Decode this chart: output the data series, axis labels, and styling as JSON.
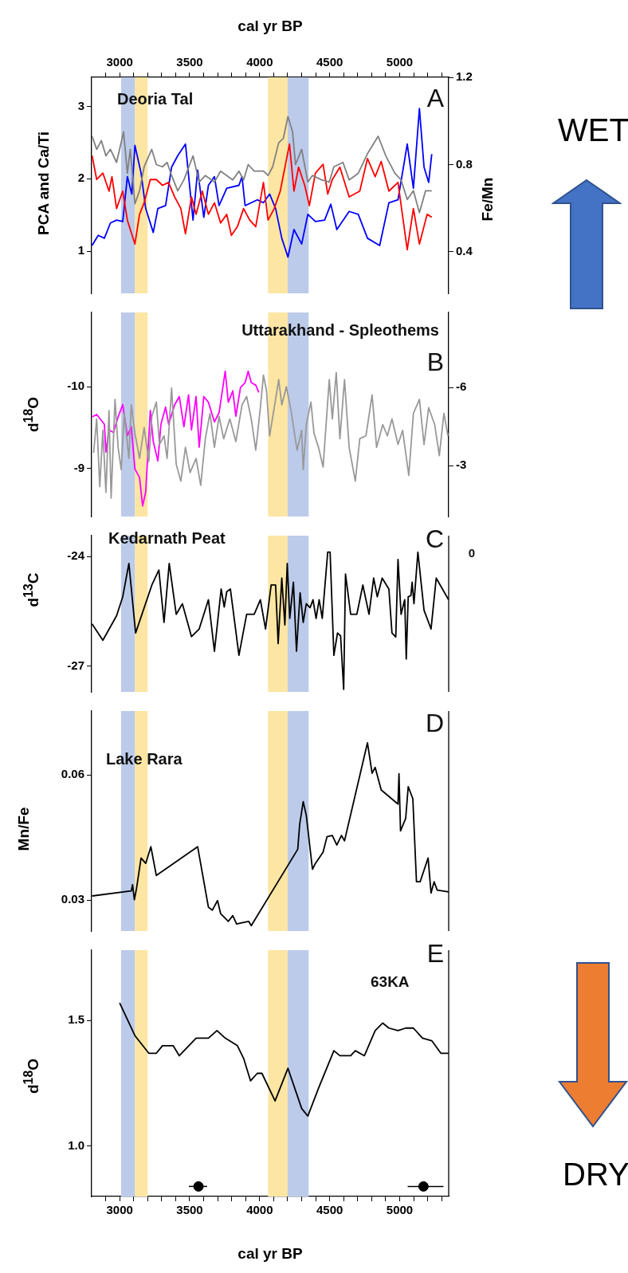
{
  "chart_data": [
    {
      "type": "line",
      "xlabel": "cal yr BP",
      "ylabel": "PCA and Ca/Ti",
      "y2label": "Fe/Mn",
      "annotations": [
        "Deoria Tal",
        "A"
      ],
      "xlim": [
        2800,
        5350
      ],
      "xticks": [
        {
          "value": 2900,
          "label": null
        },
        3000,
        {
          "value": 3100,
          "label": null
        },
        {
          "value": 3200,
          "label": null
        },
        {
          "value": 3300,
          "label": null
        },
        {
          "value": 3400,
          "label": null
        },
        3500,
        {
          "value": 3600,
          "label": null
        },
        {
          "value": 3700,
          "label": null
        },
        {
          "value": 3800,
          "label": null
        },
        {
          "value": 3900,
          "label": null
        },
        4000,
        {
          "value": 4100,
          "label": null
        },
        {
          "value": 4200,
          "label": null
        },
        {
          "value": 4300,
          "label": null
        },
        {
          "value": 4400,
          "label": null
        },
        4500,
        {
          "value": 4600,
          "label": null
        },
        {
          "value": 4700,
          "label": null
        },
        {
          "value": 4800,
          "label": null
        },
        {
          "value": 4900,
          "label": null
        },
        5000,
        {
          "value": 5100,
          "label": null
        },
        {
          "value": 5200,
          "label": null
        },
        {
          "value": 5300,
          "label": null
        }
      ],
      "ylim": [
        0.42,
        3.4
      ],
      "yticks": [
        1,
        2,
        3
      ],
      "y2lim": [
        0.21,
        1.2
      ],
      "y2ticks": [
        0.4,
        0.8,
        1.2
      ],
      "bands": [
        {
          "axis": "x",
          "from": 3010,
          "to": 3110,
          "color": "#bccbea"
        },
        {
          "axis": "x",
          "from": 3110,
          "to": 3200,
          "color": "#fde6a3"
        },
        {
          "axis": "x",
          "from": 4060,
          "to": 4200,
          "color": "#fde6a3"
        },
        {
          "axis": "x",
          "from": 4200,
          "to": 4350,
          "color": "#bccbea"
        }
      ],
      "series": [
        {
          "color": "#808080",
          "axis": "y2",
          "x": [
            2803,
            2836,
            2869,
            2902,
            2934,
            2978,
            3028,
            3055,
            3076,
            3109,
            3142,
            3175,
            3229,
            3262,
            3306,
            3339,
            3371,
            3415,
            3459,
            3524,
            3568,
            3612,
            3677,
            3721,
            3765,
            3808,
            3852,
            3885,
            3918,
            3961,
            4027,
            4060,
            4093,
            4136,
            4169,
            4202,
            4235,
            4256,
            4300,
            4344,
            4377,
            4442,
            4497,
            4530,
            4595,
            4639,
            4704,
            4770,
            4846,
            4901,
            4966,
            5010,
            5054,
            5098,
            5141,
            5185,
            5229
          ],
          "values": [
            0.93,
            0.87,
            0.91,
            0.84,
            0.87,
            0.81,
            0.95,
            0.76,
            0.87,
            0.62,
            0.68,
            0.79,
            0.87,
            0.8,
            0.79,
            0.81,
            0.75,
            0.68,
            0.73,
            0.84,
            0.72,
            0.75,
            0.72,
            0.77,
            0.75,
            0.73,
            0.77,
            0.73,
            0.8,
            0.77,
            0.77,
            0.75,
            0.79,
            0.9,
            0.92,
            1.02,
            0.95,
            0.8,
            0.87,
            0.72,
            0.75,
            0.73,
            0.72,
            0.79,
            0.81,
            0.73,
            0.76,
            0.85,
            0.93,
            0.84,
            0.76,
            0.73,
            0.64,
            0.68,
            0.58,
            0.68,
            0.68
          ]
        },
        {
          "color": "#ff0000",
          "x": [
            2803,
            2836,
            2880,
            2924,
            2945,
            2978,
            3022,
            3055,
            3109,
            3142,
            3175,
            3219,
            3262,
            3306,
            3349,
            3393,
            3437,
            3470,
            3513,
            3546,
            3590,
            3634,
            3677,
            3721,
            3765,
            3798,
            3841,
            3885,
            3929,
            3972,
            4027,
            4060,
            4104,
            4147,
            4213,
            4245,
            4278,
            4322,
            4355,
            4398,
            4453,
            4486,
            4519,
            4573,
            4639,
            4715,
            4770,
            4825,
            4868,
            4923,
            4988,
            5054,
            5098,
            5141,
            5196,
            5229
          ],
          "values": [
            2.32,
            1.99,
            2.08,
            1.83,
            2.03,
            1.59,
            1.83,
            1.43,
            1.1,
            1.51,
            1.67,
            1.99,
            1.99,
            1.91,
            1.95,
            1.75,
            1.59,
            1.24,
            1.75,
            1.51,
            1.83,
            1.51,
            1.67,
            1.39,
            1.51,
            1.22,
            1.34,
            1.59,
            1.43,
            1.34,
            1.95,
            1.43,
            1.59,
            1.83,
            2.48,
            1.83,
            2.16,
            1.91,
            1.63,
            2.08,
            2.2,
            1.79,
            1.99,
            2.16,
            1.75,
            1.83,
            2.28,
            2.03,
            2.24,
            1.83,
            1.95,
            1.02,
            1.59,
            1.1,
            1.51,
            1.47
          ]
        },
        {
          "color": "#0000ff",
          "x": [
            2803,
            2847,
            2891,
            2934,
            2978,
            3022,
            3055,
            3087,
            3109,
            3153,
            3186,
            3240,
            3273,
            3328,
            3371,
            3415,
            3470,
            3524,
            3557,
            3601,
            3634,
            3677,
            3710,
            3765,
            3852,
            3874,
            3896,
            3983,
            4027,
            4071,
            4114,
            4158,
            4202,
            4245,
            4300,
            4344,
            4398,
            4464,
            4508,
            4551,
            4639,
            4704,
            4770,
            4857,
            4923,
            4988,
            5054,
            5098,
            5141,
            5174,
            5207,
            5229
          ],
          "values": [
            1.08,
            1.22,
            1.18,
            1.39,
            1.43,
            1.41,
            2.03,
            1.79,
            2.46,
            2.08,
            1.59,
            1.26,
            1.59,
            1.63,
            2.16,
            2.32,
            2.48,
            1.43,
            2.12,
            1.47,
            1.91,
            2.03,
            1.63,
            1.87,
            1.91,
            2.03,
            1.63,
            1.71,
            1.67,
            1.79,
            1.59,
            1.18,
            0.92,
            1.3,
            1.1,
            1.51,
            1.41,
            1.43,
            1.65,
            1.3,
            1.55,
            1.51,
            1.18,
            1.08,
            1.67,
            1.71,
            2.48,
            1.87,
            2.97,
            2.16,
            1.95,
            2.34
          ]
        }
      ]
    },
    {
      "type": "line",
      "ylabel": "d$^{18}$O",
      "annotations": [
        "Uttarakhand - Spleothems",
        "B"
      ],
      "tick_labels": "y",
      "xlim": [
        2800,
        5350
      ],
      "ylim": [
        -8.41,
        -10.91
      ],
      "yticks": [
        -10,
        -9
      ],
      "y2lim": [
        -1.04,
        -8.88
      ],
      "y2ticks": [
        -6,
        -3
      ],
      "bands": [
        {
          "axis": "x",
          "from": 3010,
          "to": 3110,
          "color": "#bccbea"
        },
        {
          "axis": "x",
          "from": 3110,
          "to": 3200,
          "color": "#fde6a3"
        },
        {
          "axis": "x",
          "from": 4060,
          "to": 4200,
          "color": "#fde6a3"
        },
        {
          "axis": "x",
          "from": 4200,
          "to": 4350,
          "color": "#bccbea"
        }
      ],
      "series": [
        {
          "color": "#999999",
          "axis": "y2",
          "x": [
            2814,
            2836,
            2858,
            2880,
            2902,
            2924,
            2939,
            2967,
            2989,
            3011,
            3033,
            3066,
            3083,
            3109,
            3142,
            3175,
            3208,
            3230,
            3262,
            3284,
            3317,
            3339,
            3371,
            3404,
            3437,
            3470,
            3503,
            3546,
            3579,
            3612,
            3645,
            3677,
            3710,
            3743,
            3787,
            3830,
            3874,
            3907,
            3940,
            3972,
            4005,
            4027,
            4049,
            4071,
            4104,
            4136,
            4158,
            4191,
            4224,
            4267,
            4300,
            4311,
            4333,
            4366,
            4388,
            4420,
            4453,
            4497,
            4519,
            4547,
            4573,
            4606,
            4639,
            4683,
            4715,
            4759,
            4803,
            4835,
            4879,
            4912,
            4945,
            4988,
            5021,
            5065,
            5098,
            5141,
            5174,
            5207,
            5250,
            5283,
            5316,
            5345
          ],
          "values": [
            -3.49,
            -4.79,
            -2.19,
            -4.35,
            -1.97,
            -5.11,
            -1.75,
            -5.54,
            -3.7,
            -2.84,
            -5,
            -3.27,
            -5.33,
            -4.24,
            -3.27,
            -4.46,
            -3.16,
            -4.89,
            -5.44,
            -3.81,
            -4.14,
            -3.27,
            -5.98,
            -3.05,
            -2.4,
            -3.7,
            -2.73,
            -3.27,
            -2.24,
            -4.03,
            -5,
            -3.7,
            -4.89,
            -4.03,
            -4.79,
            -3.92,
            -5.33,
            -5.65,
            -4.79,
            -3.59,
            -5.22,
            -6.47,
            -5.87,
            -4.14,
            -5.22,
            -6.3,
            -5.33,
            -6.03,
            -5.11,
            -3.59,
            -4.35,
            -2.84,
            -4.57,
            -5.44,
            -4.24,
            -3.7,
            -2.94,
            -6.3,
            -4.79,
            -6.57,
            -4.03,
            -6.3,
            -3.7,
            -2.4,
            -4.03,
            -4.14,
            -5.71,
            -3.7,
            -4.57,
            -4.14,
            -4.79,
            -3.81,
            -4.35,
            -2.62,
            -5,
            -5.54,
            -3.81,
            -5.22,
            -4.57,
            -3.38,
            -5,
            -4.14
          ]
        },
        {
          "color": "#ff00ff",
          "x": [
            2803,
            2836,
            2891,
            2902,
            2924,
            2956,
            2989,
            3022,
            3055,
            3083,
            3109,
            3142,
            3164,
            3186,
            3219,
            3240,
            3273,
            3295,
            3328,
            3350,
            3393,
            3426,
            3459,
            3492,
            3513,
            3546,
            3568,
            3601,
            3634,
            3677,
            3710,
            3754,
            3776,
            3808,
            3830,
            3863,
            3896,
            3918,
            3940,
            3972,
            3994
          ],
          "values": [
            -9.63,
            -9.66,
            -9.54,
            -9.2,
            -9.47,
            -9.44,
            -9.63,
            -9.78,
            -9.4,
            -9.51,
            -8.99,
            -8.89,
            -8.54,
            -8.71,
            -9.71,
            -9.33,
            -9.09,
            -9.54,
            -9.75,
            -9.54,
            -9.78,
            -9.88,
            -9.51,
            -9.9,
            -9.47,
            -9.88,
            -9.26,
            -9.88,
            -9.81,
            -9.57,
            -9.68,
            -10.19,
            -9.81,
            -9.95,
            -9.64,
            -9.99,
            -10.05,
            -10.19,
            -10.05,
            -10.02,
            -9.93
          ]
        }
      ]
    },
    {
      "type": "line",
      "ylabel": "d$^{13}$C",
      "annotations": [
        "Kedarnath Peat",
        "C",
        "0"
      ],
      "tick_labels": "y",
      "xlim": [
        2800,
        5350
      ],
      "ylim": [
        -27.7,
        -23.43
      ],
      "yticks": [
        -27,
        -24
      ],
      "bands": [
        {
          "axis": "x",
          "from": 3010,
          "to": 3110,
          "color": "#bccbea"
        },
        {
          "axis": "x",
          "from": 3110,
          "to": 3200,
          "color": "#fde6a3"
        },
        {
          "axis": "x",
          "from": 4060,
          "to": 4200,
          "color": "#fde6a3"
        },
        {
          "axis": "x",
          "from": 4200,
          "to": 4350,
          "color": "#bccbea"
        }
      ],
      "series": [
        {
          "color": "#000000",
          "x": [
            2803,
            2880,
            2978,
            3022,
            3066,
            3114,
            3230,
            3280,
            3317,
            3354,
            3404,
            3448,
            3513,
            3568,
            3634,
            3677,
            3725,
            3747,
            3765,
            3791,
            3852,
            3907,
            3961,
            4005,
            4042,
            4082,
            4114,
            4132,
            4158,
            4180,
            4197,
            4215,
            4241,
            4263,
            4289,
            4311,
            4333,
            4360,
            4381,
            4403,
            4425,
            4447,
            4486,
            4503,
            4530,
            4556,
            4578,
            4600,
            4613,
            4650,
            4694,
            4737,
            4781,
            4814,
            4840,
            4875,
            4923,
            4945,
            4972,
            4988,
            5010,
            5036,
            5047,
            5061,
            5080,
            5089,
            5102,
            5130,
            5174,
            5224,
            5261,
            5349
          ],
          "values": [
            -25.84,
            -26.29,
            -25.62,
            -25.1,
            -24.19,
            -26.09,
            -24.78,
            -24.37,
            -25.8,
            -24.19,
            -25.58,
            -25.29,
            -26.19,
            -25.98,
            -25.18,
            -26.59,
            -24.89,
            -25.38,
            -24.96,
            -24.89,
            -26.7,
            -25.58,
            -25.58,
            -25.18,
            -25.98,
            -24.78,
            -24.78,
            -26.38,
            -24.59,
            -25.87,
            -24.19,
            -25.69,
            -24.7,
            -26.59,
            -24.99,
            -25.8,
            -25.29,
            -25.4,
            -25.18,
            -25.69,
            -25.18,
            -25.69,
            -23.88,
            -23.88,
            -26.7,
            -26.09,
            -26.17,
            -27.63,
            -24.48,
            -25.58,
            -25.58,
            -24.78,
            -25.58,
            -24.59,
            -25.1,
            -24.59,
            -24.89,
            -26.09,
            -26.2,
            -24.08,
            -25.58,
            -25.18,
            -26.8,
            -25.1,
            -25.07,
            -24.7,
            -25.29,
            -23.88,
            -25.47,
            -25.98,
            -24.59,
            -25.18
          ]
        }
      ]
    },
    {
      "type": "line",
      "ylabel": "Mn/Fe",
      "annotations": [
        "Lake Rara",
        "D"
      ],
      "tick_labels": "y",
      "xlim": [
        2800,
        5350
      ],
      "ylim": [
        0.0226,
        0.0753
      ],
      "yticks": [
        0.03,
        0.06
      ],
      "bands": [
        {
          "axis": "x",
          "from": 3010,
          "to": 3110,
          "color": "#bccbea"
        },
        {
          "axis": "x",
          "from": 3110,
          "to": 3200,
          "color": "#fde6a3"
        },
        {
          "axis": "x",
          "from": 4060,
          "to": 4200,
          "color": "#fde6a3"
        },
        {
          "axis": "x",
          "from": 4200,
          "to": 4350,
          "color": "#bccbea"
        }
      ],
      "series": [
        {
          "color": "#000000",
          "x": [
            2803,
            3083,
            3092,
            3105,
            3120,
            3153,
            3186,
            3223,
            3262,
            3557,
            3634,
            3662,
            3699,
            3721,
            3776,
            3808,
            3835,
            3874,
            3922,
            3940,
            4272,
            4286,
            4311,
            4333,
            4377,
            4398,
            4453,
            4481,
            4519,
            4551,
            4584,
            4606,
            4770,
            4803,
            4825,
            4868,
            4988,
            4995,
            5006,
            5043,
            5061,
            5094,
            5120,
            5146,
            5203,
            5224,
            5246,
            5268,
            5349
          ],
          "values": [
            0.031,
            0.0322,
            0.0337,
            0.0301,
            0.0327,
            0.0401,
            0.0388,
            0.0428,
            0.0359,
            0.0428,
            0.0283,
            0.0276,
            0.0299,
            0.0268,
            0.0249,
            0.0263,
            0.0243,
            0.0246,
            0.0249,
            0.0239,
            0.0422,
            0.0482,
            0.0536,
            0.0503,
            0.0374,
            0.0388,
            0.0415,
            0.0452,
            0.0455,
            0.0432,
            0.0455,
            0.0442,
            0.0677,
            0.0604,
            0.0618,
            0.0564,
            0.053,
            0.0603,
            0.0466,
            0.0496,
            0.0572,
            0.0543,
            0.0344,
            0.0344,
            0.0401,
            0.0317,
            0.0344,
            0.0324,
            0.032
          ]
        }
      ]
    },
    {
      "type": "line",
      "xlabel": "cal yr BP",
      "ylabel": "d$^{18}$O",
      "annotations": [
        "63KA",
        "E"
      ],
      "xlim": [
        2800,
        5350
      ],
      "xticks": [
        {
          "value": 2900,
          "label": null
        },
        3000,
        {
          "value": 3100,
          "label": null
        },
        {
          "value": 3200,
          "label": null
        },
        {
          "value": 3300,
          "label": null
        },
        {
          "value": 3400,
          "label": null
        },
        3500,
        {
          "value": 3600,
          "label": null
        },
        {
          "value": 3700,
          "label": null
        },
        {
          "value": 3800,
          "label": null
        },
        {
          "value": 3900,
          "label": null
        },
        4000,
        {
          "value": 4100,
          "label": null
        },
        {
          "value": 4200,
          "label": null
        },
        {
          "value": 4300,
          "label": null
        },
        {
          "value": 4400,
          "label": null
        },
        4500,
        {
          "value": 4600,
          "label": null
        },
        {
          "value": 4700,
          "label": null
        },
        {
          "value": 4800,
          "label": null
        },
        {
          "value": 4900,
          "label": null
        },
        5000,
        {
          "value": 5100,
          "label": null
        },
        {
          "value": 5200,
          "label": null
        },
        {
          "value": 5300,
          "label": null
        }
      ],
      "ylim": [
        0.8,
        1.78
      ],
      "yticks": [
        {
          "value": 1,
          "label": "1.0"
        },
        1.5
      ],
      "bands": [
        {
          "axis": "x",
          "from": 3010,
          "to": 3110,
          "color": "#bccbea"
        },
        {
          "axis": "x",
          "from": 3110,
          "to": 3200,
          "color": "#fde6a3"
        },
        {
          "axis": "x",
          "from": 4060,
          "to": 4200,
          "color": "#fde6a3"
        },
        {
          "axis": "x",
          "from": 4200,
          "to": 4350,
          "color": "#bccbea"
        }
      ],
      "series": [
        {
          "color": "#000000",
          "x": [
            3000,
            3109,
            3208,
            3262,
            3306,
            3382,
            3426,
            3546,
            3634,
            3695,
            3754,
            3841,
            3885,
            3935,
            3983,
            4016,
            4110,
            4202,
            4300,
            4344,
            4420,
            4530,
            4573,
            4650,
            4683,
            4748,
            4825,
            4879,
            4923,
            4988,
            5043,
            5098,
            5163,
            5229,
            5294,
            5349
          ],
          "values": [
            1.57,
            1.44,
            1.37,
            1.37,
            1.4,
            1.4,
            1.36,
            1.43,
            1.43,
            1.46,
            1.43,
            1.4,
            1.35,
            1.26,
            1.29,
            1.29,
            1.18,
            1.31,
            1.15,
            1.12,
            1.23,
            1.38,
            1.36,
            1.36,
            1.38,
            1.36,
            1.46,
            1.49,
            1.47,
            1.46,
            1.47,
            1.47,
            1.43,
            1.42,
            1.37,
            1.37
          ]
        },
        {
          "type": "scatter",
          "color": "#000000",
          "marker": "circle",
          "x": [
            3563,
            5170
          ],
          "values": [
            0.84,
            0.84
          ],
          "xerrors": [
            [
              3494,
              3625
            ],
            [
              5057,
              5313
            ]
          ]
        }
      ]
    },
    {
      "type": "other",
      "annotations": [
        "WET",
        "DRY"
      ]
    }
  ]
}
